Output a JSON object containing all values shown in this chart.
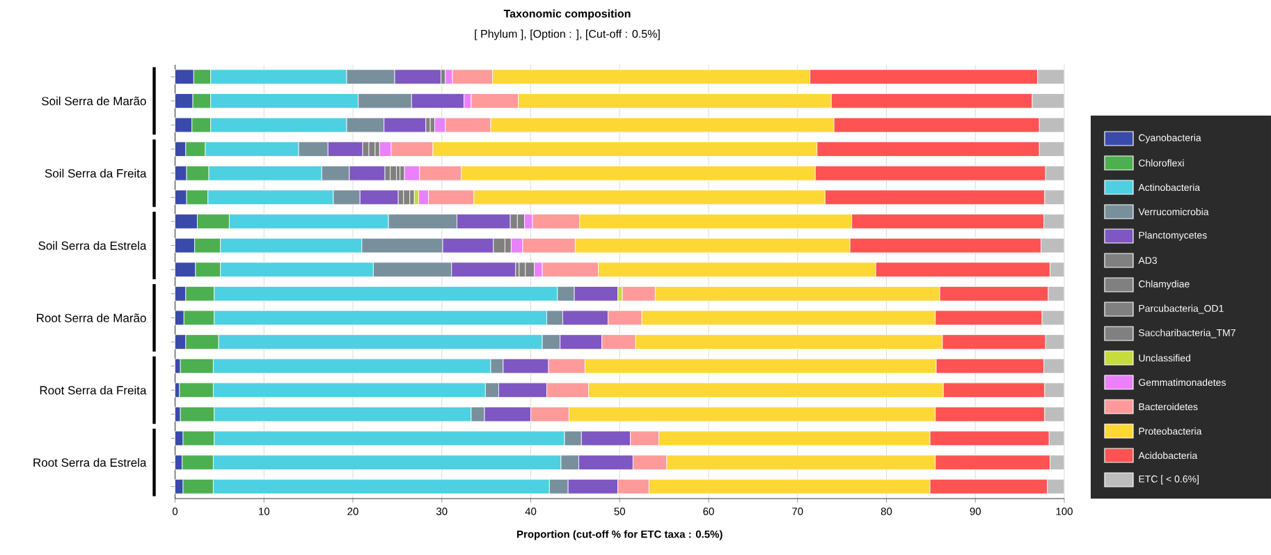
{
  "chart_data": {
    "type": "bar",
    "orientation": "horizontal",
    "stacked": true,
    "title": "Taxonomic composition",
    "subtitle": "[ Phylum ], [Option : ], [Cut-off : 0.5%]",
    "xlabel": "Proportion (cut-off % for ETC taxa : 0.5%)",
    "categories": [
      null,
      "Soil Serra de Marão",
      null,
      null,
      "Soil Serra da Freita",
      null,
      null,
      "Soil Serra da Estrela",
      null,
      null,
      "Root Serra de Marão",
      null,
      null,
      "Root Serra da Freita",
      null,
      null,
      "Root Serra da Estrela",
      null
    ],
    "xlim": [
      0,
      100
    ],
    "xticks": [
      0,
      10,
      20,
      30,
      40,
      50,
      60,
      70,
      80,
      90,
      100
    ],
    "grid": "x",
    "legend": "right",
    "series": [
      {
        "name": "Cyanobacteria",
        "color": "#3a4aab",
        "values": [
          2.1,
          2.0,
          1.9,
          1.2,
          1.3,
          1.3,
          2.5,
          2.2,
          2.3,
          1.2,
          1.0,
          1.2,
          0.6,
          0.5,
          0.6,
          0.9,
          0.8,
          0.9
        ]
      },
      {
        "name": "Chloroflexi",
        "color": "#4caf50",
        "values": [
          1.9,
          2.0,
          2.1,
          2.2,
          2.5,
          2.4,
          3.6,
          2.9,
          2.8,
          3.2,
          3.4,
          3.7,
          3.7,
          3.8,
          3.8,
          3.5,
          3.5,
          3.4
        ]
      },
      {
        "name": "Actinobacteria",
        "color": "#4dd0e1",
        "values": [
          15.3,
          16.6,
          15.3,
          10.5,
          12.7,
          14.1,
          17.9,
          15.9,
          17.2,
          38.6,
          37.4,
          36.4,
          31.2,
          30.6,
          28.9,
          39.4,
          39.1,
          37.8
        ]
      },
      {
        "name": "Verrucomicrobia",
        "color": "#78909c",
        "values": [
          5.4,
          6.0,
          4.2,
          3.3,
          3.1,
          3.0,
          7.7,
          9.1,
          8.8,
          1.9,
          1.8,
          2.0,
          1.4,
          1.5,
          1.5,
          1.9,
          2.0,
          2.1
        ]
      },
      {
        "name": "Planctomycetes",
        "color": "#7e57c2",
        "values": [
          5.2,
          5.9,
          4.7,
          3.9,
          4.0,
          4.3,
          6.0,
          5.7,
          7.2,
          4.9,
          5.1,
          4.7,
          5.1,
          5.4,
          5.2,
          5.5,
          6.1,
          5.6
        ]
      },
      {
        "name": "AD3",
        "color": "#808080",
        "values": [
          0.5,
          null,
          0.5,
          0.7,
          0.6,
          0.6,
          0.8,
          1.3,
          0.4,
          null,
          null,
          null,
          null,
          null,
          null,
          null,
          null,
          null
        ]
      },
      {
        "name": "Chlamydiae",
        "color": "#808080",
        "values": [
          null,
          null,
          0.5,
          0.7,
          0.7,
          0.7,
          0.8,
          0.7,
          0.7,
          null,
          null,
          null,
          null,
          null,
          null,
          null,
          null,
          null
        ]
      },
      {
        "name": "Parcubacteria_OD1",
        "color": "#808080",
        "values": [
          null,
          null,
          null,
          0.5,
          0.4,
          0.5,
          null,
          null,
          1.0,
          null,
          null,
          null,
          null,
          null,
          null,
          null,
          null,
          null
        ]
      },
      {
        "name": "Saccharibacteria_TM7",
        "color": "#808080",
        "values": [
          null,
          null,
          null,
          null,
          0.5,
          null,
          null,
          null,
          null,
          null,
          null,
          null,
          null,
          null,
          null,
          null,
          null,
          null
        ]
      },
      {
        "name": "Unclassified",
        "color": "#c6dc3c",
        "values": [
          null,
          null,
          null,
          null,
          null,
          0.5,
          null,
          null,
          null,
          0.5,
          null,
          null,
          null,
          null,
          null,
          null,
          null,
          null
        ]
      },
      {
        "name": "Gemmatimonadetes",
        "color": "#ea80fc",
        "values": [
          0.8,
          0.8,
          1.2,
          1.3,
          1.7,
          1.1,
          0.9,
          1.3,
          0.9,
          null,
          null,
          null,
          null,
          null,
          null,
          null,
          null,
          null
        ]
      },
      {
        "name": "Bacteroidetes",
        "color": "#ff9a9a",
        "values": [
          4.5,
          5.3,
          5.1,
          4.7,
          4.7,
          5.1,
          5.3,
          5.9,
          6.3,
          3.7,
          3.8,
          3.8,
          4.1,
          4.7,
          4.3,
          3.2,
          3.8,
          3.5
        ]
      },
      {
        "name": "Proteobacteria",
        "color": "#fdd835",
        "values": [
          35.7,
          35.2,
          38.6,
          43.2,
          39.8,
          39.5,
          30.6,
          30.9,
          31.2,
          32.0,
          33.0,
          34.5,
          39.5,
          39.9,
          41.2,
          30.5,
          30.2,
          31.6
        ]
      },
      {
        "name": "Acidobacteria",
        "color": "#ff5252",
        "values": [
          25.6,
          22.6,
          23.1,
          25.0,
          25.9,
          24.7,
          21.6,
          21.5,
          19.6,
          12.2,
          12.0,
          11.6,
          12.1,
          11.4,
          12.3,
          13.4,
          12.9,
          13.2
        ]
      },
      {
        "name": "ETC [ < 0.6%]",
        "color": "#bdbdbd",
        "values": [
          3.0,
          3.6,
          2.8,
          2.8,
          2.1,
          2.2,
          2.3,
          2.6,
          1.6,
          1.8,
          2.5,
          2.1,
          2.3,
          2.2,
          2.2,
          1.7,
          1.6,
          1.9
        ]
      }
    ]
  }
}
